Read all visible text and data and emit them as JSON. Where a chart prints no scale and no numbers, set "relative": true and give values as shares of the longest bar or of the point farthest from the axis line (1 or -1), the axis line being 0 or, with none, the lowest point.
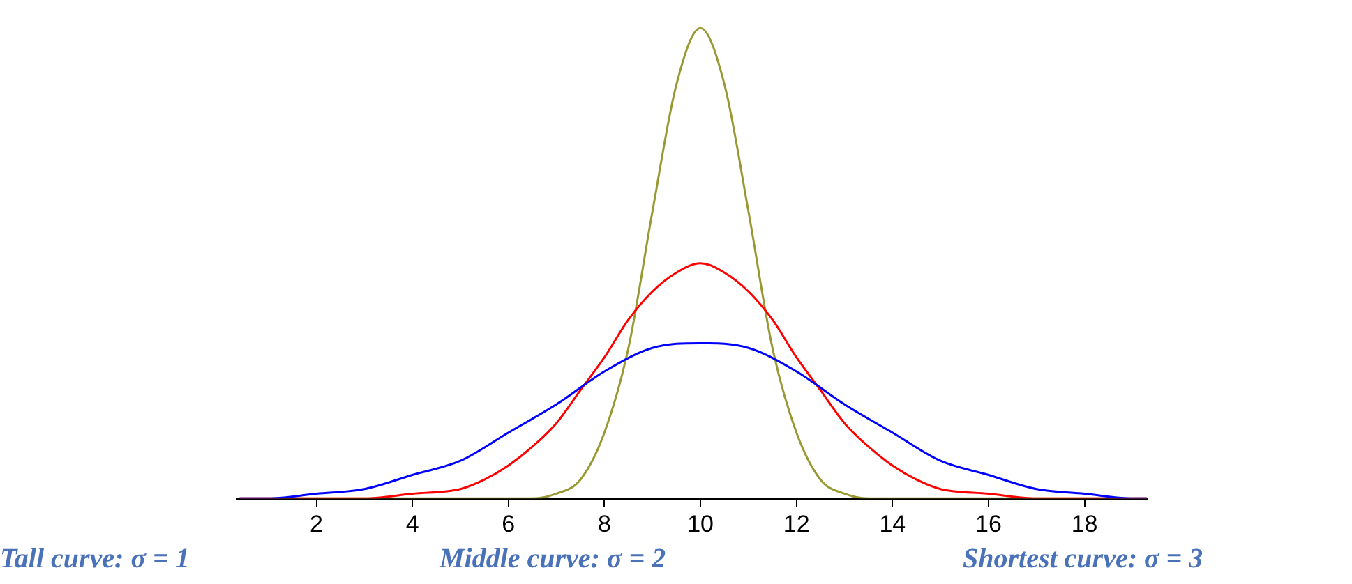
{
  "chart_data": {
    "type": "line",
    "relative": true,
    "xlim": [
      0.35,
      19.3
    ],
    "xticks": [
      2,
      4,
      6,
      8,
      10,
      12,
      14,
      16,
      18
    ],
    "marker": "none",
    "annotations": [
      "Tall curve: σ = 1",
      "Middle curve: σ = 2",
      "Shortest curve: σ = 3"
    ],
    "series": [
      {
        "color": "#0000ff",
        "x": [
          0.4,
          1,
          2,
          3,
          4,
          5,
          6,
          7,
          8,
          9,
          10,
          11,
          12,
          13,
          14,
          15,
          16,
          17,
          18,
          19,
          19.3
        ],
        "values": [
          0,
          0,
          0.01,
          0.02,
          0.05,
          0.08,
          0.14,
          0.2,
          0.27,
          0.32,
          0.33,
          0.32,
          0.27,
          0.2,
          0.14,
          0.08,
          0.05,
          0.02,
          0.01,
          0,
          0
        ]
      },
      {
        "color": "#ff0000",
        "x": [
          0.4,
          3,
          4,
          5,
          5.5,
          6,
          6.5,
          7,
          7.5,
          8,
          8.5,
          9,
          9.5,
          10,
          10.5,
          11,
          11.5,
          12,
          12.5,
          13,
          13.5,
          14,
          14.5,
          15,
          16,
          17,
          19.3
        ],
        "values": [
          0,
          0,
          0.01,
          0.02,
          0.04,
          0.07,
          0.11,
          0.16,
          0.23,
          0.3,
          0.38,
          0.44,
          0.48,
          0.5,
          0.48,
          0.44,
          0.38,
          0.3,
          0.23,
          0.16,
          0.11,
          0.07,
          0.04,
          0.02,
          0.01,
          0,
          0
        ]
      },
      {
        "color": "#999933",
        "x": [
          0.4,
          6.5,
          7,
          7.5,
          8,
          8.5,
          9,
          9.5,
          10,
          10.5,
          11,
          11.5,
          12,
          12.5,
          13,
          13.5,
          19.3
        ],
        "values": [
          0,
          0,
          0.01,
          0.04,
          0.14,
          0.32,
          0.61,
          0.88,
          1,
          0.88,
          0.61,
          0.32,
          0.14,
          0.04,
          0.01,
          0,
          0
        ]
      }
    ]
  }
}
